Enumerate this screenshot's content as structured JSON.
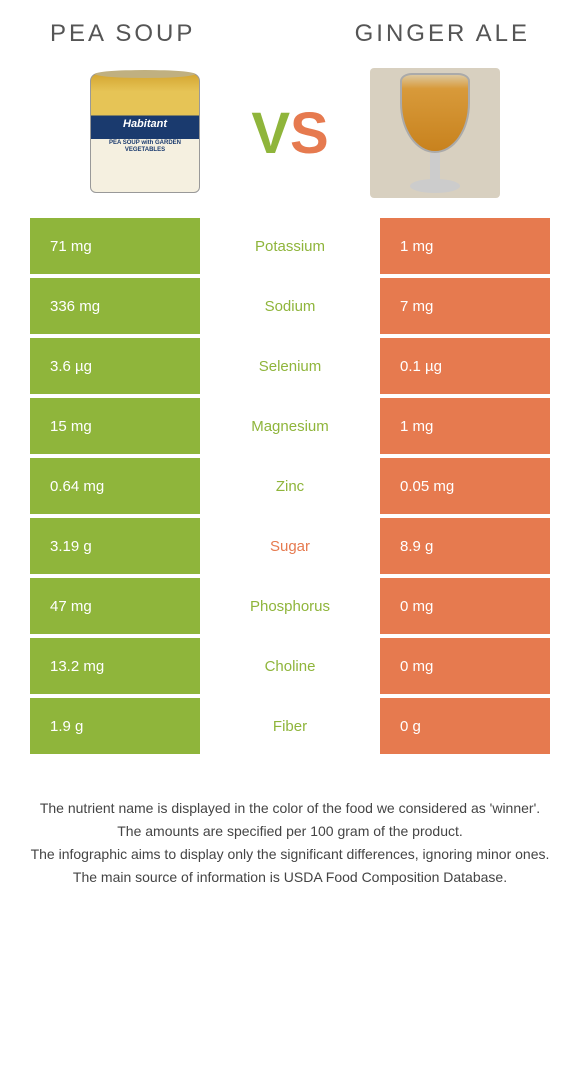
{
  "left": {
    "title": "PEA SOUP",
    "color": "#8fb53b",
    "product_label": "Habitant",
    "product_sub": "PEA SOUP with GARDEN VEGETABLES"
  },
  "right": {
    "title": "GINGER ALE",
    "color": "#e67a4f"
  },
  "vs": {
    "v": "V",
    "s": "S"
  },
  "rows": [
    {
      "nutrient": "Potassium",
      "left": "71 mg",
      "right": "1 mg",
      "winner": "left"
    },
    {
      "nutrient": "Sodium",
      "left": "336 mg",
      "right": "7 mg",
      "winner": "left"
    },
    {
      "nutrient": "Selenium",
      "left": "3.6 µg",
      "right": "0.1 µg",
      "winner": "left"
    },
    {
      "nutrient": "Magnesium",
      "left": "15 mg",
      "right": "1 mg",
      "winner": "left"
    },
    {
      "nutrient": "Zinc",
      "left": "0.64 mg",
      "right": "0.05 mg",
      "winner": "left"
    },
    {
      "nutrient": "Sugar",
      "left": "3.19 g",
      "right": "8.9 g",
      "winner": "right"
    },
    {
      "nutrient": "Phosphorus",
      "left": "47 mg",
      "right": "0 mg",
      "winner": "left"
    },
    {
      "nutrient": "Choline",
      "left": "13.2 mg",
      "right": "0 mg",
      "winner": "left"
    },
    {
      "nutrient": "Fiber",
      "left": "1.9 g",
      "right": "0 g",
      "winner": "left"
    }
  ],
  "footer": [
    "The nutrient name is displayed in the color of the food we considered as 'winner'.",
    "The amounts are specified per 100 gram of the product.",
    "The infographic aims to display only the significant differences, ignoring minor ones.",
    "The main source of information is USDA Food Composition Database."
  ]
}
